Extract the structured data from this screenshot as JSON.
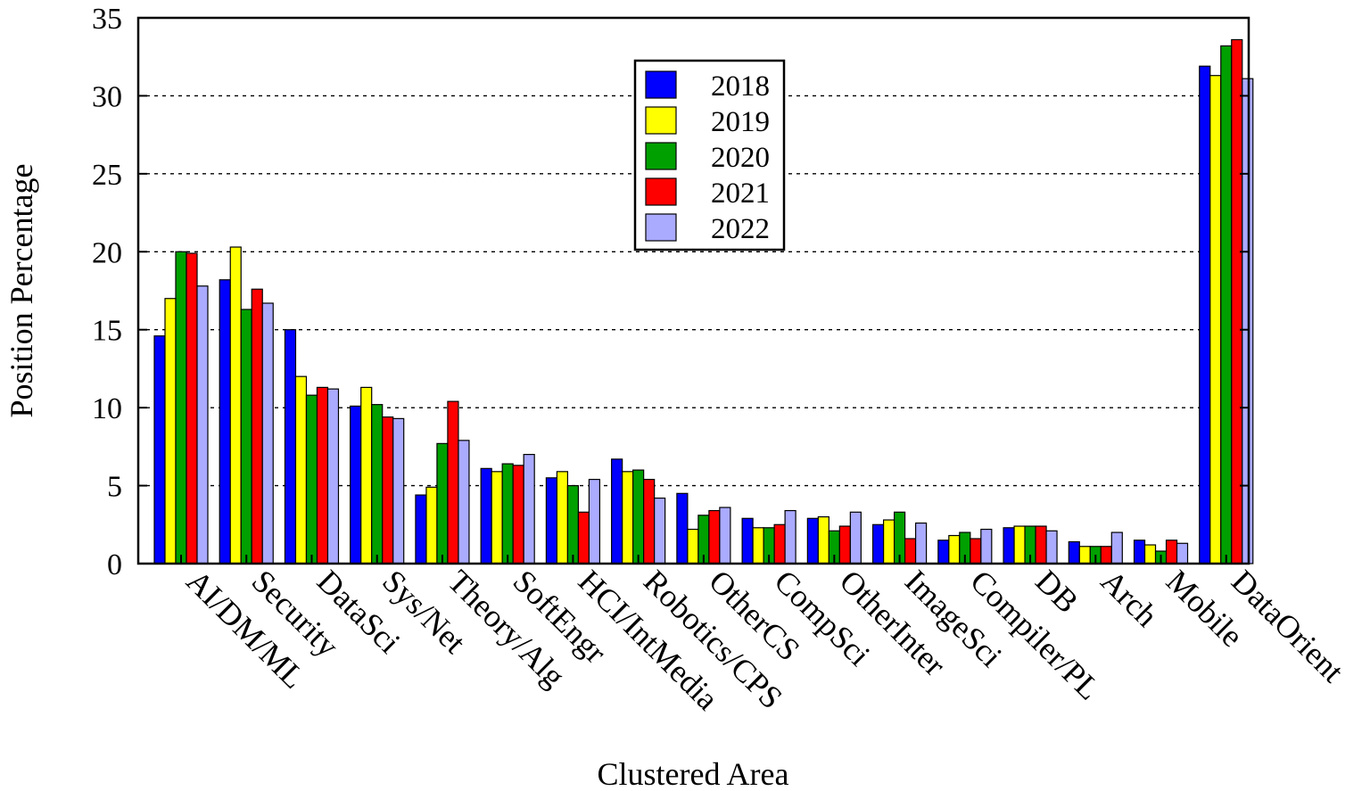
{
  "chart_data": {
    "type": "bar",
    "xlabel": "Clustered Area",
    "ylabel": "Position Percentage",
    "ylim": [
      0,
      35
    ],
    "yticks": [
      0,
      5,
      10,
      15,
      20,
      25,
      30,
      35
    ],
    "grid": "horizontal dashed",
    "legend_position": "top-center",
    "categories": [
      "AI/DM/ML",
      "Security",
      "DataSci",
      "Sys/Net",
      "Theory/Alg",
      "SoftEngr",
      "HCI/IntMedia",
      "Robotics/CPS",
      "OtherCS",
      "CompSci",
      "OtherInter",
      "ImageSci",
      "Compiler/PL",
      "DB",
      "Arch",
      "Mobile",
      "DataOrient"
    ],
    "series": [
      {
        "name": "2018",
        "color": "#0000ff",
        "values": [
          14.6,
          18.2,
          15.0,
          10.1,
          4.4,
          6.1,
          5.5,
          6.7,
          4.5,
          2.9,
          2.9,
          2.5,
          1.5,
          2.3,
          1.4,
          1.5,
          31.9
        ]
      },
      {
        "name": "2019",
        "color": "#ffff00",
        "values": [
          17.0,
          20.3,
          12.0,
          11.3,
          4.9,
          5.9,
          5.9,
          5.9,
          2.2,
          2.3,
          3.0,
          2.8,
          1.8,
          2.4,
          1.1,
          1.2,
          31.3
        ]
      },
      {
        "name": "2020",
        "color": "#00a000",
        "values": [
          20.0,
          16.3,
          10.8,
          10.2,
          7.7,
          6.4,
          5.0,
          6.0,
          3.1,
          2.3,
          2.1,
          3.3,
          2.0,
          2.4,
          1.1,
          0.8,
          33.2
        ]
      },
      {
        "name": "2021",
        "color": "#ff0000",
        "values": [
          19.9,
          17.6,
          11.3,
          9.4,
          10.4,
          6.3,
          3.3,
          5.4,
          3.4,
          2.5,
          2.4,
          1.6,
          1.6,
          2.4,
          1.1,
          1.5,
          33.6
        ]
      },
      {
        "name": "2022",
        "color": "#aaaaff",
        "values": [
          17.8,
          16.7,
          11.2,
          9.3,
          7.9,
          7.0,
          5.4,
          4.2,
          3.6,
          3.4,
          3.3,
          2.6,
          2.2,
          2.1,
          2.0,
          1.3,
          31.1
        ]
      }
    ]
  }
}
